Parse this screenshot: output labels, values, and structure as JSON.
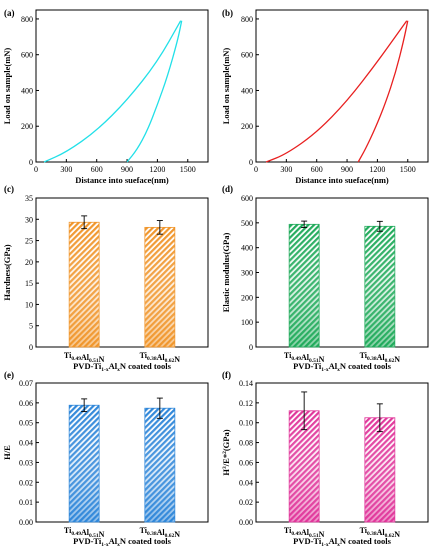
{
  "chart_data": [
    {
      "panel": "(a)",
      "type": "line",
      "xlabel": "Distance into sueface(nm)",
      "ylabel": "Load on sample(mN)",
      "xlim": [
        0,
        1700
      ],
      "ylim": [
        0,
        850
      ],
      "xticks": [
        "0",
        "300",
        "600",
        "900",
        "1200",
        "1500"
      ],
      "yticks": [
        "0",
        "200",
        "400",
        "600",
        "800"
      ],
      "color": "#22e0e8",
      "series": [
        {
          "role": "loading",
          "x": [
            80,
            300,
            600,
            900,
            1200,
            1430
          ],
          "y": [
            0,
            55,
            175,
            345,
            560,
            790
          ]
        },
        {
          "role": "unloading",
          "x": [
            1440,
            1400,
            1300,
            1200,
            1100,
            1000,
            900
          ],
          "y": [
            790,
            680,
            480,
            320,
            175,
            70,
            0
          ]
        }
      ]
    },
    {
      "panel": "(b)",
      "type": "line",
      "xlabel": "Distance into sueface(nm)",
      "ylabel": "Load on sample(mN)",
      "xlim": [
        0,
        1700
      ],
      "ylim": [
        0,
        850
      ],
      "xticks": [
        "0",
        "300",
        "600",
        "900",
        "1200",
        "1500"
      ],
      "yticks": [
        "0",
        "200",
        "400",
        "600",
        "800"
      ],
      "color": "#e82020",
      "series": [
        {
          "role": "loading",
          "x": [
            100,
            300,
            600,
            900,
            1200,
            1490
          ],
          "y": [
            0,
            45,
            165,
            340,
            560,
            790
          ]
        },
        {
          "role": "unloading",
          "x": [
            1500,
            1460,
            1380,
            1280,
            1180,
            1080,
            1010
          ],
          "y": [
            790,
            680,
            500,
            330,
            190,
            70,
            0
          ]
        }
      ]
    },
    {
      "panel": "(c)",
      "type": "bar",
      "ylabel": "Hardness(GPa)",
      "ylim": [
        0,
        35
      ],
      "yticks": [
        "0",
        "5",
        "10",
        "15",
        "20",
        "25",
        "30",
        "35"
      ],
      "categories": [
        "Ti0.49Al0.51N",
        "Ti0.38Al0.62N"
      ],
      "values": [
        29.3,
        28.1
      ],
      "errors": [
        1.5,
        1.6
      ],
      "color": "#f0952a",
      "xlabel": "PVD-Ti1-xAlxN coated tools"
    },
    {
      "panel": "(d)",
      "type": "bar",
      "ylabel": "Elastic modulus(GPa)",
      "ylim": [
        0,
        600
      ],
      "yticks": [
        "0",
        "100",
        "200",
        "300",
        "400",
        "500",
        "600"
      ],
      "categories": [
        "Ti0.49Al0.51N",
        "Ti0.38Al0.62N"
      ],
      "values": [
        494,
        486
      ],
      "errors": [
        13,
        20
      ],
      "color": "#1faa5a",
      "xlabel": "PVD-Ti1-xAlxN coated tools"
    },
    {
      "panel": "(e)",
      "type": "bar",
      "ylabel": "H/E",
      "ylim": [
        0,
        0.07
      ],
      "yticks": [
        "0.00",
        "0.01",
        "0.02",
        "0.03",
        "0.04",
        "0.05",
        "0.06",
        "0.07"
      ],
      "categories": [
        "Ti0.49Al0.51N",
        "Ti0.38Al0.62N"
      ],
      "values": [
        0.0588,
        0.0573
      ],
      "errors": [
        0.0032,
        0.0051
      ],
      "color": "#2e86d9",
      "xlabel": "PVD-Ti1-xAlxN coated tools"
    },
    {
      "panel": "(f)",
      "type": "bar",
      "ylabel": "H3/E*2(GPa)",
      "ylim": [
        0,
        0.14
      ],
      "yticks": [
        "0.00",
        "0.02",
        "0.04",
        "0.06",
        "0.08",
        "0.10",
        "0.12",
        "0.14"
      ],
      "categories": [
        "Ti0.49Al0.51N",
        "Ti0.38Al0.62N"
      ],
      "values": [
        0.112,
        0.105
      ],
      "errors": [
        0.019,
        0.014
      ],
      "color": "#e0359a",
      "xlabel": "PVD-Ti1-xAlxN coated tools"
    }
  ]
}
